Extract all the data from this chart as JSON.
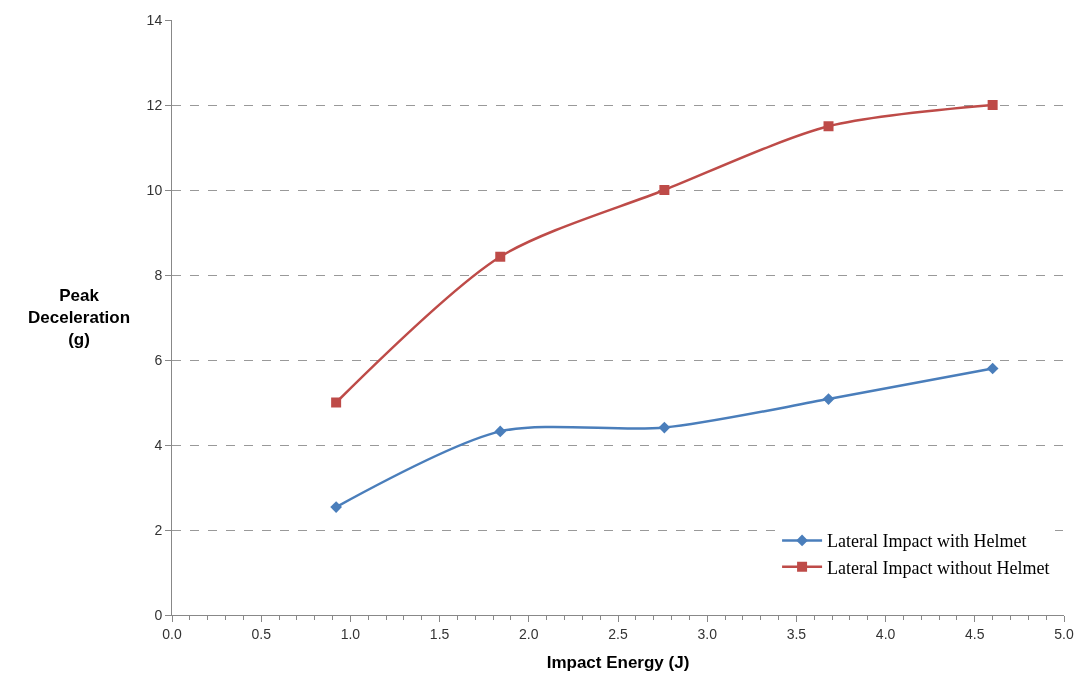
{
  "chart_data": {
    "type": "line",
    "xlabel": "Impact Energy (J)",
    "ylabel": "Peak Deceleration (g)",
    "xlim": [
      0,
      5
    ],
    "xticks": [
      {
        "value": 0,
        "label": "0.0"
      },
      {
        "value": 0.5,
        "label": "0.5"
      },
      {
        "value": 1,
        "label": "1.0"
      },
      {
        "value": 1.5,
        "label": "1.5"
      },
      {
        "value": 2,
        "label": "2.0"
      },
      {
        "value": 2.5,
        "label": "2.5"
      },
      {
        "value": 3,
        "label": "3.0"
      },
      {
        "value": 3.5,
        "label": "3.5"
      },
      {
        "value": 4,
        "label": "4.0"
      },
      {
        "value": 4.5,
        "label": "4.5"
      },
      {
        "value": 5,
        "label": "5.0"
      }
    ],
    "ylim": [
      0,
      14
    ],
    "yticks": [
      0,
      2,
      4,
      6,
      8,
      10,
      12,
      14
    ],
    "x": [
      0.92,
      1.84,
      2.76,
      3.68,
      4.6
    ],
    "series": [
      {
        "name": "Lateral Impact with Helmet",
        "color": "#4a7ebb",
        "marker": "diamond",
        "values": [
          2.54,
          4.32,
          4.41,
          5.08,
          5.8
        ]
      },
      {
        "name": "Lateral Impact without Helmet",
        "color": "#be4b48",
        "marker": "square",
        "values": [
          5.0,
          8.43,
          10.0,
          11.5,
          12.0
        ]
      }
    ],
    "grid": "y",
    "legend": "bottom right",
    "line_style": "solid"
  }
}
